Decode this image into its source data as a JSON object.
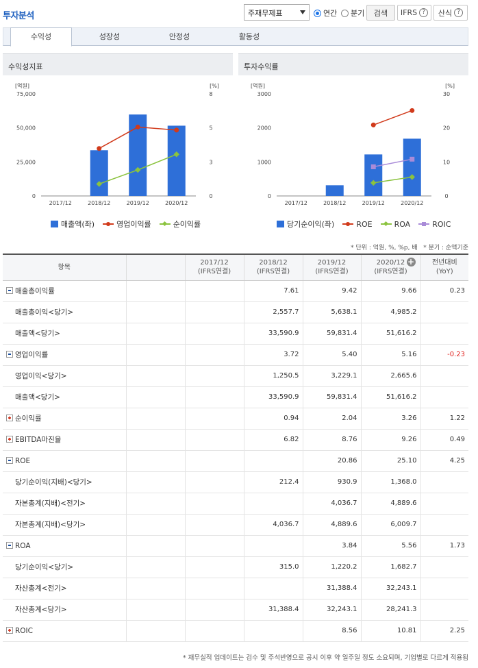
{
  "header": {
    "title": "투자분석",
    "select_value": "주재무제표",
    "radio_annual": "연간",
    "radio_quarter": "분기",
    "search_label": "검색",
    "ifrs_label": "IFRS",
    "formula_label": "산식"
  },
  "tabs": [
    {
      "label": "수익성"
    },
    {
      "label": "성장성"
    },
    {
      "label": "안정성"
    },
    {
      "label": "활동성"
    }
  ],
  "panels": {
    "left_title": "수익성지표",
    "right_title": "투자수익률"
  },
  "colors": {
    "bar": "#2e6fd8",
    "line_red": "#d13a1b",
    "line_green": "#8bc33e",
    "line_purple": "#a98bd8"
  },
  "chart_data": [
    {
      "type": "bar",
      "categories": [
        "2017/12",
        "2018/12",
        "2019/12",
        "2020/12"
      ],
      "left_unit": "[억원]",
      "right_unit": "[%]",
      "left_ticks": [
        "75,000",
        "50,000",
        "25,000",
        "0"
      ],
      "right_ticks": [
        "8",
        "5",
        "3",
        "0"
      ],
      "ylim_left": [
        0,
        75000
      ],
      "ylim_right": [
        0,
        8
      ],
      "series": [
        {
          "name": "매출액(좌)",
          "kind": "bar",
          "axis": "left",
          "values": [
            null,
            33590.9,
            59831.4,
            51616.2
          ],
          "color": "#2e6fd8"
        },
        {
          "name": "영업이익률",
          "kind": "line",
          "axis": "right",
          "marker": "circle",
          "values": [
            null,
            3.72,
            5.4,
            5.16
          ],
          "color": "#d13a1b"
        },
        {
          "name": "순이익률",
          "kind": "line",
          "axis": "right",
          "marker": "diamond",
          "values": [
            null,
            0.94,
            2.04,
            3.26
          ],
          "color": "#8bc33e"
        }
      ]
    },
    {
      "type": "bar",
      "categories": [
        "2017/12",
        "2018/12",
        "2019/12",
        "2020/12"
      ],
      "left_unit": "[억원]",
      "right_unit": "[%]",
      "left_ticks": [
        "3000",
        "2000",
        "1000",
        "0"
      ],
      "right_ticks": [
        "30",
        "20",
        "10",
        "0"
      ],
      "ylim_left": [
        0,
        3000
      ],
      "ylim_right": [
        0,
        30
      ],
      "series": [
        {
          "name": "당기순이익(좌)",
          "kind": "bar",
          "axis": "left",
          "values": [
            null,
            315.0,
            1220.2,
            1682.7
          ],
          "color": "#2e6fd8"
        },
        {
          "name": "ROE",
          "kind": "line",
          "axis": "right",
          "marker": "circle",
          "values": [
            null,
            null,
            20.86,
            25.1
          ],
          "color": "#d13a1b"
        },
        {
          "name": "ROA",
          "kind": "line",
          "axis": "right",
          "marker": "diamond",
          "values": [
            null,
            null,
            3.84,
            5.56
          ],
          "color": "#8bc33e"
        },
        {
          "name": "ROIC",
          "kind": "line",
          "axis": "right",
          "marker": "square",
          "values": [
            null,
            null,
            8.56,
            10.81
          ],
          "color": "#a98bd8"
        }
      ]
    }
  ],
  "table": {
    "note_unit": "* 단위 : 억원, %, %p, 배",
    "note_quarter": "* 분기 : 순액기준",
    "headers": {
      "item": "항목",
      "c1_a": "2017/12",
      "c1_b": "(IFRS연결)",
      "c2_a": "2018/12",
      "c2_b": "(IFRS연결)",
      "c3_a": "2019/12",
      "c3_b": "(IFRS연결)",
      "c4_a": "2020/12",
      "c4_b": "(IFRS연결)",
      "yoy_a": "전년대비",
      "yoy_b": "(YoY)"
    },
    "rows": [
      {
        "label": "매출총이익률",
        "kind": "minus",
        "v": [
          "",
          "7.61",
          "9.42",
          "9.66"
        ],
        "yoy": "0.23"
      },
      {
        "label": "매출총이익<당기>",
        "kind": "sub",
        "v": [
          "",
          "2,557.7",
          "5,638.1",
          "4,985.2"
        ],
        "yoy": ""
      },
      {
        "label": "매출액<당기>",
        "kind": "sub",
        "v": [
          "",
          "33,590.9",
          "59,831.4",
          "51,616.2"
        ],
        "yoy": ""
      },
      {
        "label": "영업이익률",
        "kind": "minus",
        "v": [
          "",
          "3.72",
          "5.40",
          "5.16"
        ],
        "yoy": "-0.23"
      },
      {
        "label": "영업이익<당기>",
        "kind": "sub",
        "v": [
          "",
          "1,250.5",
          "3,229.1",
          "2,665.6"
        ],
        "yoy": ""
      },
      {
        "label": "매출액<당기>",
        "kind": "sub",
        "v": [
          "",
          "33,590.9",
          "59,831.4",
          "51,616.2"
        ],
        "yoy": ""
      },
      {
        "label": "순이익률",
        "kind": "plus",
        "v": [
          "",
          "0.94",
          "2.04",
          "3.26"
        ],
        "yoy": "1.22"
      },
      {
        "label": "EBITDA마진율",
        "kind": "plus",
        "v": [
          "",
          "6.82",
          "8.76",
          "9.26"
        ],
        "yoy": "0.49"
      },
      {
        "label": "ROE",
        "kind": "minus",
        "v": [
          "",
          "",
          "20.86",
          "25.10"
        ],
        "yoy": "4.25"
      },
      {
        "label": "당기순이익(지배)<당기>",
        "kind": "sub",
        "v": [
          "",
          "212.4",
          "930.9",
          "1,368.0"
        ],
        "yoy": ""
      },
      {
        "label": "자본총계(지배)<전기>",
        "kind": "sub",
        "v": [
          "",
          "",
          "4,036.7",
          "4,889.6"
        ],
        "yoy": ""
      },
      {
        "label": "자본총계(지배)<당기>",
        "kind": "sub",
        "v": [
          "",
          "4,036.7",
          "4,889.6",
          "6,009.7"
        ],
        "yoy": ""
      },
      {
        "label": "ROA",
        "kind": "minus",
        "v": [
          "",
          "",
          "3.84",
          "5.56"
        ],
        "yoy": "1.73"
      },
      {
        "label": "당기순이익<당기>",
        "kind": "sub",
        "v": [
          "",
          "315.0",
          "1,220.2",
          "1,682.7"
        ],
        "yoy": ""
      },
      {
        "label": "자산총계<전기>",
        "kind": "sub",
        "v": [
          "",
          "",
          "31,388.4",
          "32,243.1"
        ],
        "yoy": ""
      },
      {
        "label": "자산총계<당기>",
        "kind": "sub",
        "v": [
          "",
          "31,388.4",
          "32,243.1",
          "28,241.3"
        ],
        "yoy": ""
      },
      {
        "label": "ROIC",
        "kind": "plus",
        "v": [
          "",
          "",
          "8.56",
          "10.81"
        ],
        "yoy": "2.25"
      }
    ]
  },
  "footer_note": "* 재무실적 업데이트는 검수 및 주석반영으로 공시 이후 약 일주일 정도 소요되며, 기업별로 다르게 적용됩"
}
